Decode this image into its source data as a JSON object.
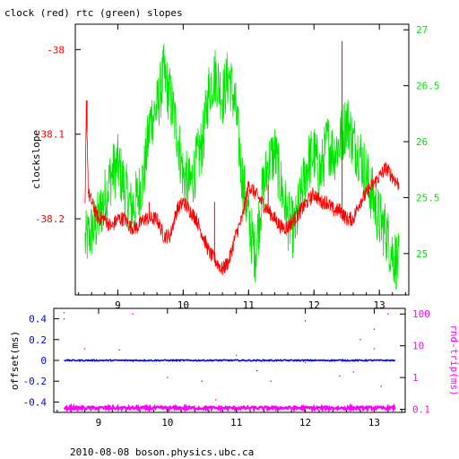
{
  "title": "clock (red) rtc (green) slopes",
  "footer": "2010-08-08 boson.physics.ubc.ca",
  "colors": {
    "red": "#ff0000",
    "green": "#00e600",
    "blue": "#0000ff",
    "magenta": "#ff00ff",
    "frame": "#000000"
  },
  "chart_data": [
    {
      "type": "line",
      "title": "clock (red) rtc (green) slopes",
      "xlabel": "",
      "xlim": [
        8.35,
        13.45
      ],
      "x_ticks": [
        9,
        10,
        11,
        12,
        13
      ],
      "x_tick_labels": [
        "9",
        "10",
        "11",
        "12",
        "13"
      ],
      "y_left": {
        "label": "clockslope",
        "lim": [
          -38.29,
          -37.97
        ],
        "ticks": [
          -38,
          -38.1,
          -38.2
        ],
        "tick_labels": [
          "-38",
          "-38.1",
          "-38.2"
        ],
        "color": "#ff0000"
      },
      "y_right": {
        "label": "",
        "lim": [
          24.63,
          27.05
        ],
        "ticks": [
          25,
          25.5,
          26,
          26.5,
          27
        ],
        "tick_labels": [
          "25",
          "25.5",
          "26",
          "26.5",
          "27"
        ],
        "color": "#00e600"
      },
      "series": [
        {
          "color": "#ff0000",
          "axis": "left",
          "points": [
            [
              8.5,
              -38.19
            ],
            [
              8.52,
              -38.06
            ],
            [
              8.55,
              -38.17
            ],
            [
              8.6,
              -38.18
            ],
            [
              8.7,
              -38.2
            ],
            [
              8.8,
              -38.2
            ],
            [
              8.9,
              -38.21
            ],
            [
              9.0,
              -38.2
            ],
            [
              9.1,
              -38.2
            ],
            [
              9.2,
              -38.21
            ],
            [
              9.3,
              -38.21
            ],
            [
              9.4,
              -38.2
            ],
            [
              9.5,
              -38.2
            ],
            [
              9.6,
              -38.2
            ],
            [
              9.7,
              -38.22
            ],
            [
              9.8,
              -38.22
            ],
            [
              9.9,
              -38.19
            ],
            [
              10.0,
              -38.18
            ],
            [
              10.1,
              -38.19
            ],
            [
              10.2,
              -38.2
            ],
            [
              10.3,
              -38.22
            ],
            [
              10.4,
              -38.24
            ],
            [
              10.5,
              -38.25
            ],
            [
              10.6,
              -38.26
            ],
            [
              10.7,
              -38.25
            ],
            [
              10.8,
              -38.22
            ],
            [
              10.9,
              -38.2
            ],
            [
              11.0,
              -38.16
            ],
            [
              11.1,
              -38.17
            ],
            [
              11.2,
              -38.18
            ],
            [
              11.3,
              -38.19
            ],
            [
              11.4,
              -38.2
            ],
            [
              11.5,
              -38.21
            ],
            [
              11.6,
              -38.21
            ],
            [
              11.7,
              -38.2
            ],
            [
              11.8,
              -38.19
            ],
            [
              11.9,
              -38.18
            ],
            [
              12.0,
              -38.17
            ],
            [
              12.1,
              -38.18
            ],
            [
              12.2,
              -38.18
            ],
            [
              12.3,
              -38.19
            ],
            [
              12.4,
              -38.19
            ],
            [
              12.5,
              -38.2
            ],
            [
              12.6,
              -38.2
            ],
            [
              12.7,
              -38.18
            ],
            [
              12.8,
              -38.17
            ],
            [
              12.9,
              -38.16
            ],
            [
              13.0,
              -38.15
            ],
            [
              13.1,
              -38.14
            ],
            [
              13.2,
              -38.15
            ],
            [
              13.3,
              -38.16
            ]
          ],
          "spikes": [
            [
              8.53,
              -38.06
            ],
            [
              9.48,
              -38.18
            ],
            [
              10.48,
              -38.18
            ],
            [
              11.3,
              -38.16
            ],
            [
              12.43,
              -37.99
            ]
          ]
        },
        {
          "color": "#00e600",
          "axis": "right",
          "points": [
            [
              8.5,
              25.1
            ],
            [
              8.6,
              25.2
            ],
            [
              8.7,
              25.3
            ],
            [
              8.8,
              25.5
            ],
            [
              8.9,
              25.7
            ],
            [
              9.0,
              25.8
            ],
            [
              9.1,
              25.6
            ],
            [
              9.2,
              25.4
            ],
            [
              9.3,
              25.5
            ],
            [
              9.4,
              25.7
            ],
            [
              9.5,
              26.2
            ],
            [
              9.6,
              26.3
            ],
            [
              9.7,
              26.6
            ],
            [
              9.8,
              26.4
            ],
            [
              9.9,
              26.1
            ],
            [
              10.0,
              25.7
            ],
            [
              10.1,
              25.6
            ],
            [
              10.2,
              25.8
            ],
            [
              10.3,
              26.0
            ],
            [
              10.4,
              26.5
            ],
            [
              10.5,
              26.6
            ],
            [
              10.6,
              26.4
            ],
            [
              10.7,
              26.6
            ],
            [
              10.8,
              26.3
            ],
            [
              10.9,
              25.7
            ],
            [
              11.0,
              25.3
            ],
            [
              11.1,
              25.0
            ],
            [
              11.2,
              25.5
            ],
            [
              11.3,
              25.8
            ],
            [
              11.4,
              25.9
            ],
            [
              11.5,
              25.6
            ],
            [
              11.6,
              25.3
            ],
            [
              11.7,
              25.2
            ],
            [
              11.8,
              25.5
            ],
            [
              11.9,
              25.8
            ],
            [
              12.0,
              25.9
            ],
            [
              12.1,
              25.7
            ],
            [
              12.2,
              26.0
            ],
            [
              12.3,
              25.9
            ],
            [
              12.4,
              26.0
            ],
            [
              12.5,
              26.2
            ],
            [
              12.6,
              26.0
            ],
            [
              12.7,
              25.9
            ],
            [
              12.8,
              25.7
            ],
            [
              12.9,
              25.5
            ],
            [
              13.0,
              25.3
            ],
            [
              13.1,
              25.2
            ],
            [
              13.2,
              25.0
            ],
            [
              13.3,
              24.9
            ]
          ]
        }
      ]
    },
    {
      "type": "scatter",
      "xlim": [
        8.35,
        13.45
      ],
      "x_ticks": [
        9,
        10,
        11,
        12,
        13
      ],
      "x_tick_labels": [
        "9",
        "10",
        "11",
        "12",
        "13"
      ],
      "y_left": {
        "label": "offset(ms)",
        "lim": [
          -0.5,
          0.5
        ],
        "ticks": [
          0.4,
          0.2,
          0,
          -0.2,
          -0.4
        ],
        "tick_labels": [
          "0.4",
          "0.2",
          "0",
          "-0.2",
          "-0.4"
        ],
        "color": "#0000ff"
      },
      "y_right": {
        "label": "rnd-trip(ms)",
        "scale": "log",
        "lim": [
          0.08,
          150
        ],
        "ticks": [
          100,
          10,
          1,
          0.1
        ],
        "tick_labels": [
          "100",
          "10",
          "1",
          "0.1"
        ],
        "color": "#ff00ff"
      },
      "series": [
        {
          "color": "#0000ff",
          "axis": "left",
          "band_value": 0.0,
          "x_range": [
            8.5,
            13.3
          ],
          "outliers": [
            [
              8.5,
              0.4
            ],
            [
              9.3,
              0.1
            ],
            [
              10.5,
              -0.2
            ],
            [
              11.3,
              -0.1
            ],
            [
              11.5,
              -0.2
            ],
            [
              12.0,
              0.38
            ],
            [
              12.5,
              -0.15
            ],
            [
              12.8,
              0.2
            ],
            [
              13.0,
              0.3
            ],
            [
              13.1,
              -0.25
            ]
          ]
        },
        {
          "color": "#ff00ff",
          "axis": "right",
          "band_value": 0.11,
          "x_range": [
            8.5,
            13.3
          ],
          "outliers": [
            [
              8.5,
              110
            ],
            [
              8.8,
              8
            ],
            [
              9.5,
              100
            ],
            [
              10.0,
              1
            ],
            [
              10.7,
              0.2
            ],
            [
              11.0,
              5
            ],
            [
              12.0,
              3
            ],
            [
              12.7,
              1.5
            ],
            [
              13.0,
              8
            ],
            [
              13.2,
              100
            ]
          ]
        }
      ]
    }
  ]
}
